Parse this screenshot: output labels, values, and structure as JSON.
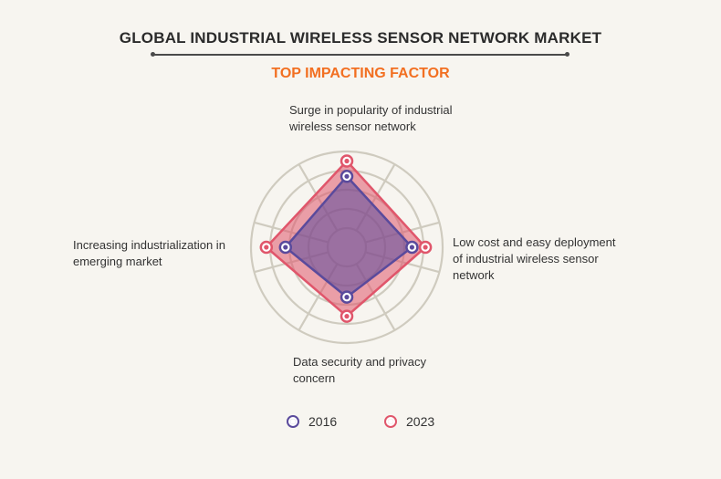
{
  "title": "GLOBAL INDUSTRIAL WIRELESS SENSOR NETWORK MARKET",
  "subtitle": "TOP IMPACTING FACTOR",
  "colors": {
    "series_2016": "#5a4a9c",
    "series_2023": "#e0566b",
    "grid": "#cfcbbf",
    "subtitle": "#f26f21"
  },
  "chart_data": {
    "type": "radar",
    "axes": [
      "Surge in popularity of industrial\nwireless sensor network",
      "Low cost and easy deployment\nof industrial wireless sensor\nnetwork",
      "Data security and privacy\nconcern",
      "Increasing industrialization in\nemerging market"
    ],
    "rings": 5,
    "range": [
      0,
      5
    ],
    "series": [
      {
        "name": "2016",
        "values": [
          3.7,
          3.4,
          2.6,
          3.2
        ]
      },
      {
        "name": "2023",
        "values": [
          4.5,
          4.1,
          3.6,
          4.2
        ]
      }
    ],
    "legend_position": "bottom"
  },
  "legend": [
    {
      "label": "2016"
    },
    {
      "label": "2023"
    }
  ]
}
